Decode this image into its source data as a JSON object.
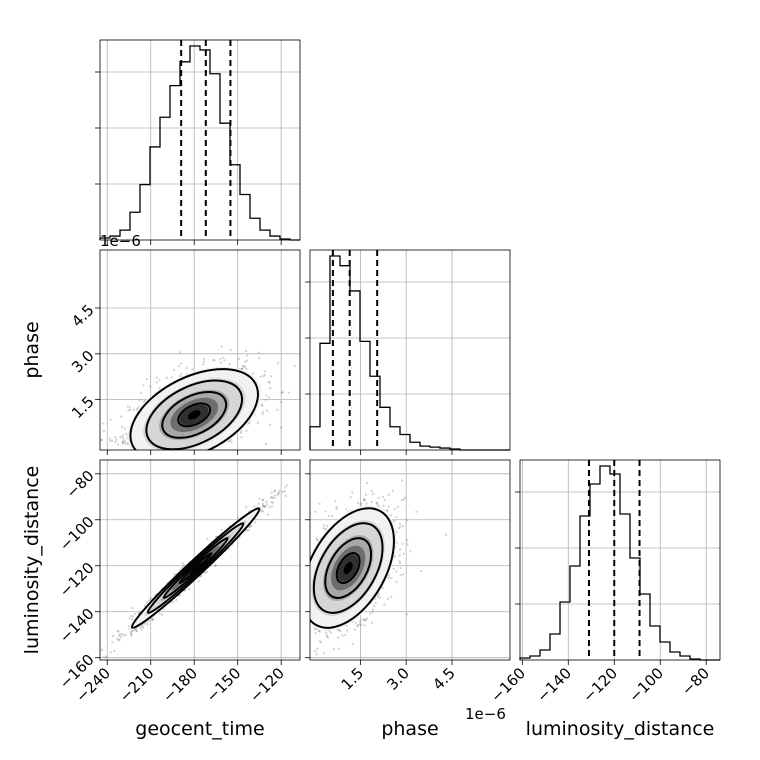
{
  "chart_data": {
    "type": "corner",
    "parameters": [
      "geocent_time",
      "phase",
      "luminosity_distance"
    ],
    "axis_labels": {
      "geocent_time": "geocent_time",
      "phase": "phase",
      "luminosity_distance": "luminosity_distance"
    },
    "offset_text": "1e−6",
    "ranges": {
      "geocent_time": [
        -245,
        -107
      ],
      "phase": [
        -0.15,
        6.4
      ],
      "luminosity_distance": [
        -161,
        -74
      ]
    },
    "ticks": {
      "geocent_time": [
        -240,
        -210,
        -180,
        -150,
        -120
      ],
      "phase": [
        1.5,
        3.0,
        4.5
      ],
      "luminosity_distance": [
        -160,
        -140,
        -120,
        -100,
        -80
      ]
    },
    "tick_labels": {
      "geocent_time": [
        "−240",
        "−210",
        "−180",
        "−150",
        "−120"
      ],
      "phase": [
        "1.5",
        "3.0",
        "4.5"
      ],
      "luminosity_distance": [
        "−160",
        "−140",
        "−120",
        "−100",
        "−80"
      ]
    },
    "histograms": {
      "geocent_time": {
        "edges": [
          -245,
          -238.1,
          -231.2,
          -224.3,
          -217.4,
          -210.5,
          -203.6,
          -196.7,
          -189.8,
          -182.9,
          -176,
          -169.1,
          -162.2,
          -155.3,
          -148.4,
          -141.5,
          -134.6,
          -127.7,
          -120.8,
          -113.9,
          -107
        ],
        "counts": [
          0.01,
          0.02,
          0.05,
          0.14,
          0.28,
          0.47,
          0.62,
          0.78,
          0.9,
          0.98,
          0.96,
          0.84,
          0.59,
          0.38,
          0.23,
          0.11,
          0.05,
          0.02,
          0.005,
          0
        ],
        "quantiles": [
          -189,
          -172,
          -155
        ]
      },
      "phase": {
        "edges": [
          -0.15,
          0.1775,
          0.505,
          0.8325,
          1.16,
          1.4875,
          1.815,
          2.1425,
          2.47,
          2.7975,
          3.125,
          3.4525,
          3.78,
          4.105,
          4.4325,
          4.76,
          5.0875,
          5.415,
          5.7425,
          6.07,
          6.4
        ],
        "counts": [
          0.12,
          0.55,
          1.0,
          0.95,
          0.82,
          0.56,
          0.38,
          0.22,
          0.12,
          0.08,
          0.04,
          0.02,
          0.015,
          0.01,
          0.005,
          0,
          0,
          0,
          0,
          0
        ],
        "quantiles": [
          0.6,
          1.15,
          2.05
        ]
      },
      "luminosity_distance": {
        "edges": [
          -161,
          -156.65,
          -152.3,
          -147.95,
          -143.6,
          -139.25,
          -134.9,
          -130.55,
          -126.2,
          -121.85,
          -117.5,
          -113.15,
          -108.8,
          -104.45,
          -100.1,
          -95.75,
          -91.4,
          -87.05,
          -82.7,
          -78.35,
          -74
        ],
        "counts": [
          0.01,
          0.02,
          0.05,
          0.13,
          0.29,
          0.47,
          0.72,
          0.88,
          0.97,
          0.93,
          0.73,
          0.51,
          0.33,
          0.17,
          0.09,
          0.04,
          0.02,
          0.005,
          0,
          0
        ],
        "quantiles": [
          -131,
          -120,
          -109
        ]
      }
    },
    "pairs": [
      {
        "x": "geocent_time",
        "y": "phase",
        "center": [
          -180,
          1.0
        ],
        "sigma": [
          22,
          0.75
        ],
        "rho": 0.45,
        "scatter_count": 1400,
        "scatter_max": [
          -105,
          6.2
        ]
      },
      {
        "x": "geocent_time",
        "y": "luminosity_distance",
        "center": [
          -179,
          -121
        ],
        "sigma": [
          22,
          13
        ],
        "rho": 0.985,
        "scatter_count": 1500
      },
      {
        "x": "phase",
        "y": "luminosity_distance",
        "center": [
          1.1,
          -121
        ],
        "sigma": [
          0.75,
          13
        ],
        "rho": 0.45,
        "scatter_count": 1400
      }
    ],
    "contour_levels": [
      0.5,
      1.0,
      1.5,
      2.0
    ],
    "grid": true,
    "legend": "none"
  }
}
